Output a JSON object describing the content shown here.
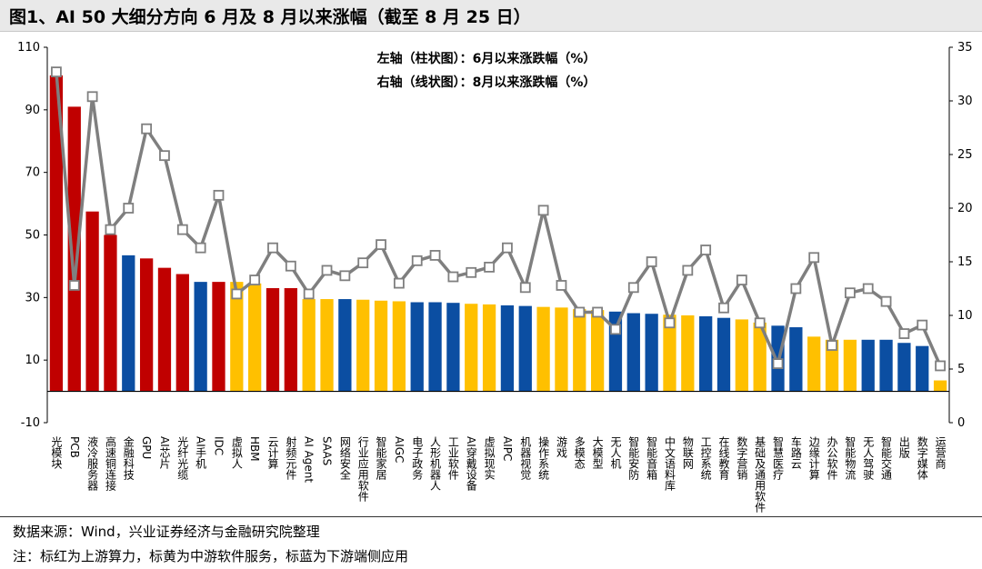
{
  "title": "图1、AI 50 大细分方向 6 月及 8 月以来涨幅（截至 8 月 25 日）",
  "source": "数据来源：Wind，兴业证券经济与金融研究院整理",
  "note": "注：标红为上游算力，标黄为中游软件服务，标蓝为下游端侧应用",
  "colors": {
    "upstream": "#C00000",
    "midstream": "#FFC000",
    "downstream": "#0B4EA2",
    "line": "#7F7F7F",
    "marker_fill": "#FFFFFF"
  },
  "chart_data": {
    "type": "bar+line",
    "legend": {
      "bar": "左轴（柱状图）：6月以来涨跌幅（%）",
      "line": "右轴（线状图）：8月以来涨跌幅（%）",
      "placement": "top-center"
    },
    "left_axis": {
      "min": -10,
      "max": 110,
      "ticks": [
        -10,
        10,
        30,
        50,
        70,
        90,
        110
      ]
    },
    "right_axis": {
      "min": 0,
      "max": 35,
      "ticks": [
        0,
        5,
        10,
        15,
        20,
        25,
        30,
        35
      ]
    },
    "grid": false,
    "categories": [
      "光模块",
      "PCB",
      "液冷服务器",
      "高速铜连接",
      "金融科技",
      "GPU",
      "AI芯片",
      "光纤光缆",
      "AI手机",
      "IDC",
      "虚拟人",
      "HBM",
      "云计算",
      "射频元件",
      "AI Agent",
      "SAAS",
      "网络安全",
      "行业应用软件",
      "智能家居",
      "AIGC",
      "电子政务",
      "人形机器人",
      "工业软件",
      "AI穿戴设备",
      "虚拟现实",
      "AIPC",
      "机器视觉",
      "操作系统",
      "游戏",
      "多模态",
      "大模型",
      "无人机",
      "智能安防",
      "智能音箱",
      "中文语料库",
      "物联网",
      "工控系统",
      "在线教育",
      "数字营销",
      "基础及通用软件",
      "智慧医疗",
      "车路云",
      "边缘计算",
      "办公软件",
      "智能物流",
      "无人驾驶",
      "智能交通",
      "出版",
      "数字媒体",
      "运营商"
    ],
    "groups": [
      "up",
      "up",
      "up",
      "up",
      "down",
      "up",
      "up",
      "up",
      "down",
      "up",
      "mid",
      "mid",
      "up",
      "up",
      "mid",
      "mid",
      "down",
      "mid",
      "mid",
      "mid",
      "down",
      "down",
      "down",
      "mid",
      "mid",
      "down",
      "down",
      "mid",
      "mid",
      "mid",
      "mid",
      "down",
      "down",
      "down",
      "mid",
      "mid",
      "down",
      "down",
      "mid",
      "mid",
      "down",
      "down",
      "mid",
      "mid",
      "mid",
      "down",
      "down",
      "down",
      "down",
      "mid"
    ],
    "series": [
      {
        "name": "6月以来涨跌幅（%）",
        "axis": "left",
        "values": [
          101,
          91,
          57.5,
          50,
          43.5,
          42.5,
          39.5,
          37.5,
          35,
          35,
          35,
          34.5,
          33,
          33,
          29.5,
          29.5,
          29.5,
          29.3,
          29,
          28.8,
          28.5,
          28.5,
          28.3,
          28,
          27.8,
          27.5,
          27.3,
          27,
          26.8,
          26.3,
          26,
          25.5,
          25,
          24.8,
          24.5,
          24.3,
          24,
          23.5,
          23,
          22,
          21,
          20.5,
          17.5,
          16.5,
          16.5,
          16.5,
          16.5,
          15.5,
          14.5,
          3.5
        ]
      },
      {
        "name": "8月以来涨跌幅（%）",
        "axis": "right",
        "values": [
          32.7,
          12.8,
          30.4,
          18,
          20,
          27.4,
          24.9,
          18,
          16.3,
          21.2,
          12,
          13.3,
          16.3,
          14.6,
          12,
          14.2,
          13.7,
          14.9,
          16.6,
          13,
          15.1,
          15.6,
          13.6,
          14,
          14.5,
          16.3,
          12.6,
          19.8,
          12.8,
          10.3,
          10.3,
          8.7,
          12.6,
          15,
          9.3,
          14.2,
          16.1,
          10.7,
          13.3,
          9.3,
          5.5,
          12.5,
          15.4,
          7.2,
          12.1,
          12.5,
          11.3,
          8.3,
          9.1,
          5.3
        ]
      }
    ]
  }
}
